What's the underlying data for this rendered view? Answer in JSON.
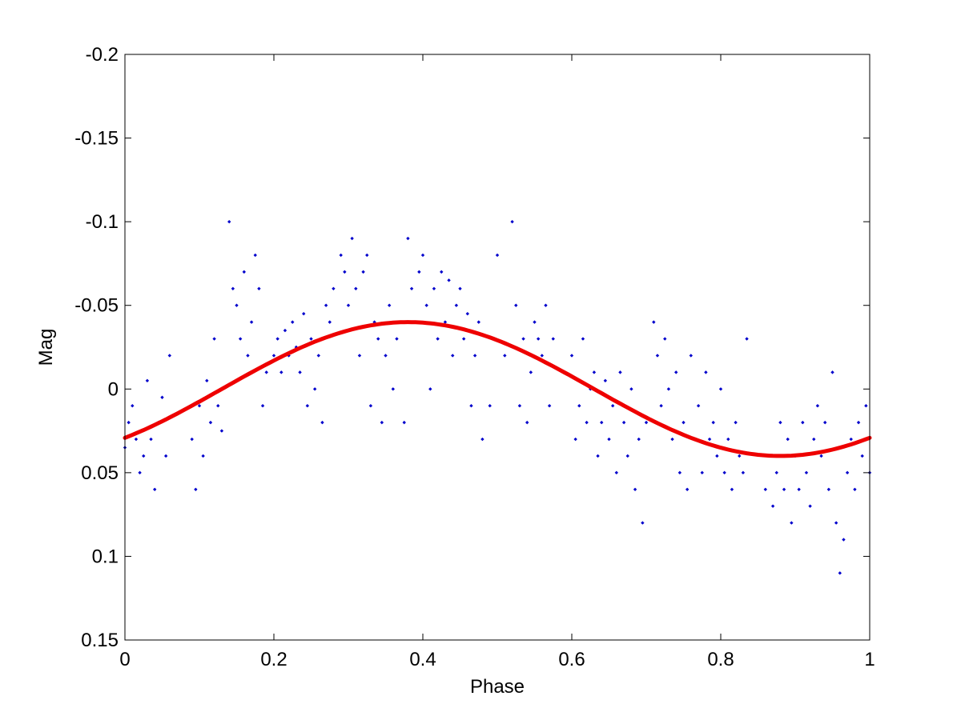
{
  "chart_data": {
    "type": "scatter",
    "title": "",
    "xlabel": "Phase",
    "ylabel": "Mag",
    "xlim": [
      0,
      1
    ],
    "ylim": [
      -0.2,
      0.15
    ],
    "y_inverted": true,
    "grid": false,
    "legend": "none",
    "x_ticks": [
      0,
      0.2,
      0.4,
      0.6,
      0.8,
      1
    ],
    "x_tick_labels": [
      "0",
      "0.2",
      "0.4",
      "0.6",
      "0.8",
      "1"
    ],
    "y_ticks": [
      -0.2,
      -0.15,
      -0.1,
      -0.05,
      0,
      0.05,
      0.1,
      0.15
    ],
    "y_tick_labels": [
      "-0.2",
      "-0.15",
      "-0.1",
      "-0.05",
      "0",
      "0.05",
      "0.1",
      "0.15"
    ],
    "series": [
      {
        "kind": "points",
        "color": "#0000cc",
        "marker": "small-diamond",
        "x": [
          0.0,
          0.005,
          0.01,
          0.015,
          0.02,
          0.025,
          0.03,
          0.035,
          0.04,
          0.045,
          0.05,
          0.055,
          0.06,
          0.09,
          0.095,
          0.1,
          0.105,
          0.11,
          0.115,
          0.12,
          0.125,
          0.13,
          0.14,
          0.145,
          0.15,
          0.155,
          0.16,
          0.165,
          0.17,
          0.175,
          0.18,
          0.185,
          0.19,
          0.2,
          0.205,
          0.21,
          0.215,
          0.22,
          0.225,
          0.23,
          0.235,
          0.24,
          0.245,
          0.25,
          0.255,
          0.26,
          0.265,
          0.27,
          0.275,
          0.28,
          0.29,
          0.295,
          0.3,
          0.305,
          0.31,
          0.315,
          0.32,
          0.325,
          0.33,
          0.335,
          0.34,
          0.345,
          0.35,
          0.355,
          0.36,
          0.365,
          0.37,
          0.375,
          0.38,
          0.385,
          0.39,
          0.395,
          0.4,
          0.405,
          0.41,
          0.415,
          0.42,
          0.425,
          0.43,
          0.435,
          0.44,
          0.445,
          0.45,
          0.455,
          0.46,
          0.465,
          0.47,
          0.475,
          0.48,
          0.49,
          0.5,
          0.51,
          0.52,
          0.525,
          0.53,
          0.535,
          0.54,
          0.545,
          0.55,
          0.555,
          0.56,
          0.565,
          0.57,
          0.575,
          0.59,
          0.6,
          0.605,
          0.61,
          0.615,
          0.62,
          0.625,
          0.63,
          0.635,
          0.64,
          0.645,
          0.65,
          0.655,
          0.66,
          0.665,
          0.67,
          0.675,
          0.68,
          0.685,
          0.69,
          0.695,
          0.7,
          0.71,
          0.715,
          0.72,
          0.725,
          0.73,
          0.735,
          0.74,
          0.745,
          0.75,
          0.755,
          0.76,
          0.765,
          0.77,
          0.775,
          0.78,
          0.785,
          0.79,
          0.795,
          0.8,
          0.805,
          0.81,
          0.815,
          0.82,
          0.825,
          0.83,
          0.835,
          0.86,
          0.865,
          0.87,
          0.875,
          0.88,
          0.885,
          0.89,
          0.895,
          0.9,
          0.905,
          0.91,
          0.915,
          0.92,
          0.925,
          0.93,
          0.935,
          0.94,
          0.945,
          0.95,
          0.955,
          0.96,
          0.965,
          0.97,
          0.975,
          0.98,
          0.985,
          0.99,
          0.995,
          1.0
        ],
        "y": [
          0.035,
          0.02,
          0.01,
          0.03,
          0.05,
          0.04,
          -0.005,
          0.03,
          0.06,
          0.02,
          0.005,
          0.04,
          -0.02,
          0.03,
          0.06,
          0.01,
          0.04,
          -0.005,
          0.02,
          -0.03,
          0.01,
          0.025,
          -0.1,
          -0.06,
          -0.05,
          -0.03,
          -0.07,
          -0.02,
          -0.04,
          -0.08,
          -0.06,
          0.01,
          -0.01,
          -0.02,
          -0.03,
          -0.01,
          -0.035,
          -0.02,
          -0.04,
          -0.025,
          -0.01,
          -0.045,
          0.01,
          -0.03,
          0.0,
          -0.02,
          0.02,
          -0.05,
          -0.04,
          -0.06,
          -0.08,
          -0.07,
          -0.05,
          -0.09,
          -0.06,
          -0.02,
          -0.07,
          -0.08,
          0.01,
          -0.04,
          -0.03,
          0.02,
          -0.02,
          -0.05,
          0.0,
          -0.03,
          -0.04,
          0.02,
          -0.09,
          -0.06,
          -0.04,
          -0.07,
          -0.08,
          -0.05,
          0.0,
          -0.06,
          -0.03,
          -0.07,
          -0.04,
          -0.065,
          -0.02,
          -0.05,
          -0.06,
          -0.03,
          -0.045,
          0.01,
          -0.02,
          -0.04,
          0.03,
          0.01,
          -0.08,
          -0.02,
          -0.1,
          -0.05,
          0.01,
          -0.03,
          0.02,
          -0.01,
          -0.04,
          -0.03,
          -0.02,
          -0.05,
          0.01,
          -0.03,
          -0.01,
          -0.02,
          0.03,
          0.01,
          -0.03,
          0.02,
          0.0,
          -0.01,
          0.04,
          0.02,
          -0.005,
          0.03,
          0.01,
          0.05,
          -0.01,
          0.02,
          0.04,
          0.0,
          0.06,
          0.03,
          0.08,
          0.02,
          -0.04,
          -0.02,
          0.01,
          -0.03,
          0.0,
          0.03,
          -0.01,
          0.05,
          0.02,
          0.06,
          -0.02,
          0.03,
          0.01,
          0.05,
          -0.01,
          0.03,
          0.02,
          0.04,
          0.0,
          0.05,
          0.03,
          0.06,
          0.02,
          0.04,
          0.05,
          -0.03,
          0.06,
          0.04,
          0.07,
          0.05,
          0.02,
          0.06,
          0.03,
          0.08,
          0.04,
          0.06,
          0.02,
          0.05,
          0.07,
          0.03,
          0.01,
          0.04,
          0.02,
          0.06,
          -0.01,
          0.08,
          0.11,
          0.09,
          0.05,
          0.03,
          0.06,
          0.02,
          0.04,
          0.01,
          0.05
        ]
      },
      {
        "kind": "fit",
        "color": "#ee0000",
        "mean": 0.0,
        "amplitude": 0.04,
        "peak_phase": 0.38
      }
    ]
  }
}
